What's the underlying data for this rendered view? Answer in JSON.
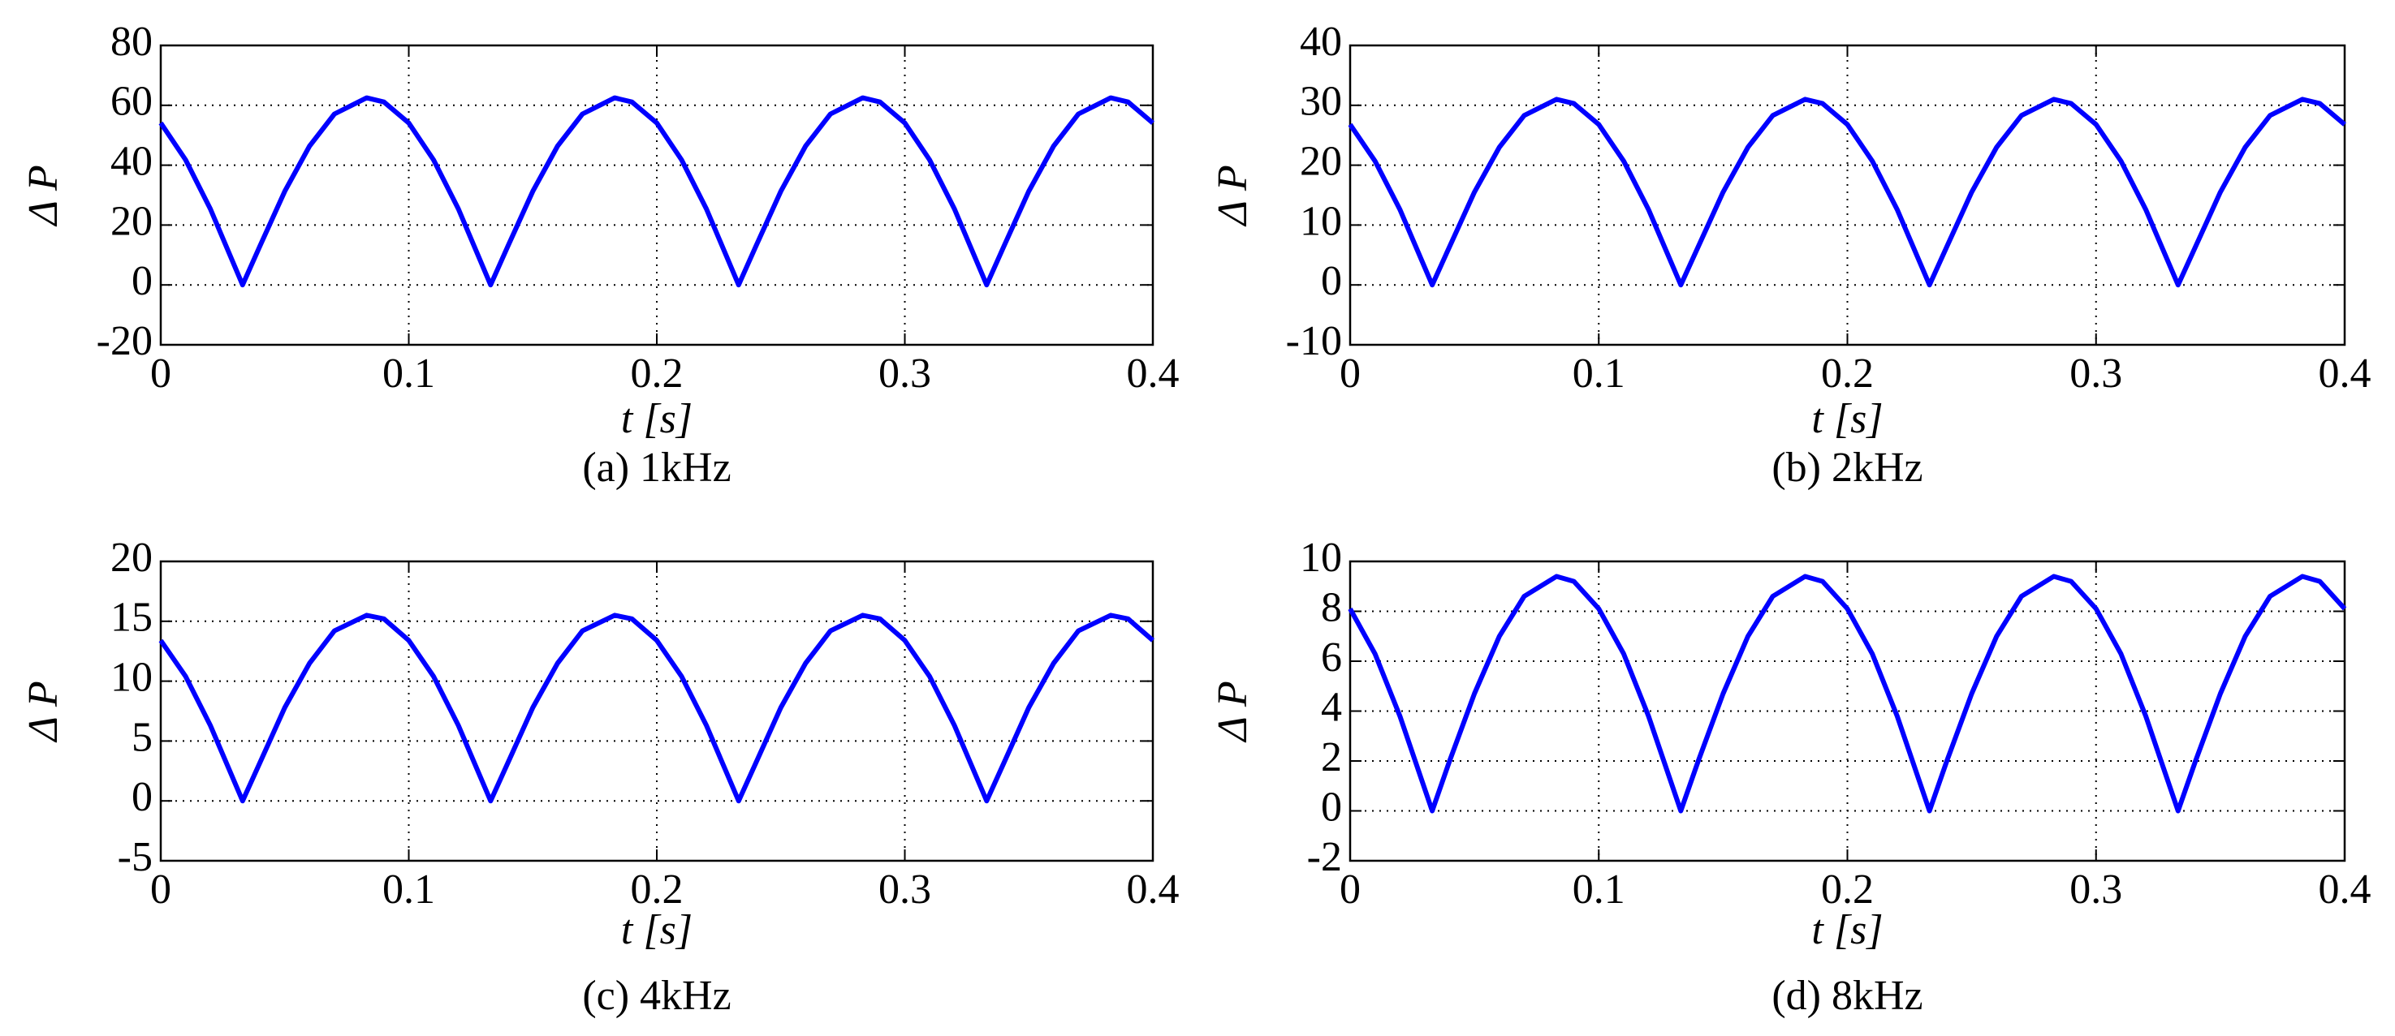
{
  "chart_data": [
    {
      "type": "line",
      "title": "(a) 1kHz",
      "x_label": "t [s]",
      "y_label": "Δ P",
      "x": [
        0,
        0.01,
        0.02,
        0.033,
        0.04,
        0.05,
        0.06,
        0.07,
        0.083,
        0.09,
        0.1,
        0.11,
        0.12,
        0.133,
        0.14,
        0.15,
        0.16,
        0.17,
        0.183,
        0.19,
        0.2,
        0.21,
        0.22,
        0.233,
        0.24,
        0.25,
        0.26,
        0.27,
        0.283,
        0.29,
        0.3,
        0.31,
        0.32,
        0.333,
        0.34,
        0.35,
        0.36,
        0.37,
        0.383,
        0.39,
        0.4
      ],
      "series": [
        {
          "name": "ΔP",
          "color": "#0000ff",
          "values": [
            54.1,
            41.8,
            25.4,
            0,
            13.0,
            31.3,
            46.4,
            57.1,
            62.5,
            61.1,
            54.1,
            41.8,
            25.4,
            0,
            13.0,
            31.3,
            46.4,
            57.1,
            62.5,
            61.1,
            54.1,
            41.8,
            25.4,
            0,
            13.0,
            31.3,
            46.4,
            57.1,
            62.5,
            61.1,
            54.1,
            41.8,
            25.4,
            0,
            13.0,
            31.3,
            46.4,
            57.1,
            62.5,
            61.1,
            54.1
          ]
        }
      ],
      "xlim": [
        0,
        0.4
      ],
      "xticks": [
        0,
        0.1,
        0.2,
        0.3,
        0.4
      ],
      "ylim": [
        -20,
        80
      ],
      "yticks": [
        -20,
        0,
        20,
        40,
        60,
        80
      ],
      "grid": true
    },
    {
      "type": "line",
      "title": "(b) 2kHz",
      "x_label": "t [s]",
      "y_label": "Δ P",
      "x": [
        0,
        0.01,
        0.02,
        0.033,
        0.04,
        0.05,
        0.06,
        0.07,
        0.083,
        0.09,
        0.1,
        0.11,
        0.12,
        0.133,
        0.14,
        0.15,
        0.16,
        0.17,
        0.183,
        0.19,
        0.2,
        0.21,
        0.22,
        0.233,
        0.24,
        0.25,
        0.26,
        0.27,
        0.283,
        0.29,
        0.3,
        0.31,
        0.32,
        0.333,
        0.34,
        0.35,
        0.36,
        0.37,
        0.383,
        0.39,
        0.4
      ],
      "series": [
        {
          "name": "ΔP",
          "color": "#0000ff",
          "values": [
            26.8,
            20.7,
            12.6,
            0,
            6.4,
            15.5,
            23.0,
            28.3,
            31,
            30.3,
            26.8,
            20.7,
            12.6,
            0,
            6.4,
            15.5,
            23.0,
            28.3,
            31,
            30.3,
            26.8,
            20.7,
            12.6,
            0,
            6.4,
            15.5,
            23.0,
            28.3,
            31,
            30.3,
            26.8,
            20.7,
            12.6,
            0,
            6.4,
            15.5,
            23.0,
            28.3,
            31,
            30.3,
            26.8
          ]
        }
      ],
      "xlim": [
        0,
        0.4
      ],
      "xticks": [
        0,
        0.1,
        0.2,
        0.3,
        0.4
      ],
      "ylim": [
        -10,
        40
      ],
      "yticks": [
        -10,
        0,
        10,
        20,
        30,
        40
      ],
      "grid": true
    },
    {
      "type": "line",
      "title": "(c) 4kHz",
      "x_label": "t [s]",
      "y_label": "Δ P",
      "x": [
        0,
        0.01,
        0.02,
        0.033,
        0.04,
        0.05,
        0.06,
        0.07,
        0.083,
        0.09,
        0.1,
        0.11,
        0.12,
        0.133,
        0.14,
        0.15,
        0.16,
        0.17,
        0.183,
        0.19,
        0.2,
        0.21,
        0.22,
        0.233,
        0.24,
        0.25,
        0.26,
        0.27,
        0.283,
        0.29,
        0.3,
        0.31,
        0.32,
        0.333,
        0.34,
        0.35,
        0.36,
        0.37,
        0.383,
        0.39,
        0.4
      ],
      "series": [
        {
          "name": "ΔP",
          "color": "#0000ff",
          "values": [
            13.4,
            10.4,
            6.3,
            0,
            3.2,
            7.8,
            11.5,
            14.2,
            15.5,
            15.2,
            13.4,
            10.4,
            6.3,
            0,
            3.2,
            7.8,
            11.5,
            14.2,
            15.5,
            15.2,
            13.4,
            10.4,
            6.3,
            0,
            3.2,
            7.8,
            11.5,
            14.2,
            15.5,
            15.2,
            13.4,
            10.4,
            6.3,
            0,
            3.2,
            7.8,
            11.5,
            14.2,
            15.5,
            15.2,
            13.4
          ]
        }
      ],
      "xlim": [
        0,
        0.4
      ],
      "xticks": [
        0,
        0.1,
        0.2,
        0.3,
        0.4
      ],
      "ylim": [
        -5,
        20
      ],
      "yticks": [
        -5,
        0,
        5,
        10,
        15,
        20
      ],
      "grid": true
    },
    {
      "type": "line",
      "title": "(d) 8kHz",
      "x_label": "t [s]",
      "y_label": "Δ P",
      "x": [
        0,
        0.01,
        0.02,
        0.033,
        0.04,
        0.05,
        0.06,
        0.07,
        0.083,
        0.09,
        0.1,
        0.11,
        0.12,
        0.133,
        0.14,
        0.15,
        0.16,
        0.17,
        0.183,
        0.19,
        0.2,
        0.21,
        0.22,
        0.233,
        0.24,
        0.25,
        0.26,
        0.27,
        0.283,
        0.29,
        0.3,
        0.31,
        0.32,
        0.333,
        0.34,
        0.35,
        0.36,
        0.37,
        0.383,
        0.39,
        0.4
      ],
      "series": [
        {
          "name": "ΔP",
          "color": "#0000ff",
          "values": [
            8.1,
            6.3,
            3.8,
            0,
            2.0,
            4.7,
            7.0,
            8.6,
            9.4,
            9.2,
            8.1,
            6.3,
            3.8,
            0,
            2.0,
            4.7,
            7.0,
            8.6,
            9.4,
            9.2,
            8.1,
            6.3,
            3.8,
            0,
            2.0,
            4.7,
            7.0,
            8.6,
            9.4,
            9.2,
            8.1,
            6.3,
            3.8,
            0,
            2.0,
            4.7,
            7.0,
            8.6,
            9.4,
            9.2,
            8.1
          ]
        }
      ],
      "xlim": [
        0,
        0.4
      ],
      "xticks": [
        0,
        0.1,
        0.2,
        0.3,
        0.4
      ],
      "ylim": [
        -2,
        10
      ],
      "yticks": [
        -2,
        0,
        2,
        4,
        6,
        8,
        10
      ],
      "grid": true
    }
  ]
}
